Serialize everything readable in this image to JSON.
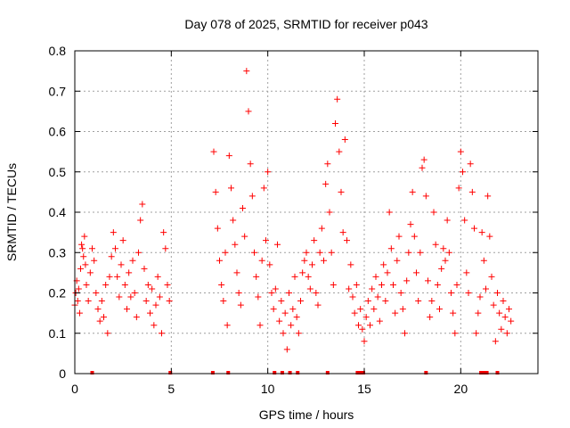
{
  "chart_data": {
    "type": "scatter",
    "title": "Day 078 of 2025, SRMTID for receiver p043",
    "xlabel": "GPS time / hours",
    "ylabel": "SRMTID / TECUs",
    "xlim": [
      0,
      24
    ],
    "ylim": [
      0,
      0.8
    ],
    "xticks": [
      0,
      5,
      10,
      15,
      20
    ],
    "yticks": [
      0,
      0.1,
      0.2,
      0.3,
      0.4,
      0.5,
      0.6,
      0.7,
      0.8
    ],
    "ytick_labels": [
      "0",
      "0.1",
      "0.2",
      "0.3",
      "0.4",
      "0.5",
      "0.6",
      "0.7",
      "0.8"
    ],
    "grid": true,
    "marker": "+",
    "color": "#ff0000",
    "zero_markers_x": [
      0.9,
      4.95,
      7.15,
      7.95,
      10.35,
      10.75,
      11.15,
      11.55,
      13.1,
      14.65,
      14.8,
      14.95,
      18.2,
      21.05,
      21.2,
      21.35,
      21.9
    ],
    "series": [
      {
        "name": "SRMTID",
        "points": [
          [
            0.0,
            0.17
          ],
          [
            0.05,
            0.2
          ],
          [
            0.1,
            0.23
          ],
          [
            0.15,
            0.18
          ],
          [
            0.2,
            0.21
          ],
          [
            0.25,
            0.15
          ],
          [
            0.3,
            0.26
          ],
          [
            0.35,
            0.32
          ],
          [
            0.4,
            0.31
          ],
          [
            0.45,
            0.29
          ],
          [
            0.5,
            0.34
          ],
          [
            0.55,
            0.27
          ],
          [
            0.6,
            0.22
          ],
          [
            0.7,
            0.18
          ],
          [
            0.8,
            0.25
          ],
          [
            0.9,
            0.31
          ],
          [
            1.0,
            0.28
          ],
          [
            1.1,
            0.2
          ],
          [
            1.2,
            0.16
          ],
          [
            1.3,
            0.13
          ],
          [
            1.4,
            0.18
          ],
          [
            1.5,
            0.14
          ],
          [
            1.6,
            0.22
          ],
          [
            1.7,
            0.1
          ],
          [
            1.8,
            0.24
          ],
          [
            1.9,
            0.29
          ],
          [
            2.0,
            0.35
          ],
          [
            2.1,
            0.31
          ],
          [
            2.2,
            0.24
          ],
          [
            2.3,
            0.19
          ],
          [
            2.4,
            0.27
          ],
          [
            2.5,
            0.33
          ],
          [
            2.6,
            0.22
          ],
          [
            2.7,
            0.16
          ],
          [
            2.8,
            0.25
          ],
          [
            2.9,
            0.19
          ],
          [
            3.0,
            0.28
          ],
          [
            3.1,
            0.2
          ],
          [
            3.2,
            0.14
          ],
          [
            3.3,
            0.3
          ],
          [
            3.4,
            0.38
          ],
          [
            3.5,
            0.42
          ],
          [
            3.6,
            0.26
          ],
          [
            3.7,
            0.18
          ],
          [
            3.8,
            0.22
          ],
          [
            3.9,
            0.15
          ],
          [
            4.0,
            0.21
          ],
          [
            4.1,
            0.12
          ],
          [
            4.2,
            0.17
          ],
          [
            4.3,
            0.24
          ],
          [
            4.4,
            0.19
          ],
          [
            4.5,
            0.1
          ],
          [
            4.6,
            0.35
          ],
          [
            4.7,
            0.31
          ],
          [
            4.8,
            0.22
          ],
          [
            4.9,
            0.18
          ],
          [
            7.2,
            0.55
          ],
          [
            7.3,
            0.45
          ],
          [
            7.4,
            0.36
          ],
          [
            7.5,
            0.28
          ],
          [
            7.6,
            0.22
          ],
          [
            7.7,
            0.18
          ],
          [
            7.8,
            0.3
          ],
          [
            7.9,
            0.12
          ],
          [
            8.0,
            0.54
          ],
          [
            8.1,
            0.46
          ],
          [
            8.2,
            0.38
          ],
          [
            8.3,
            0.32
          ],
          [
            8.4,
            0.25
          ],
          [
            8.5,
            0.2
          ],
          [
            8.6,
            0.17
          ],
          [
            8.7,
            0.41
          ],
          [
            8.8,
            0.34
          ],
          [
            8.9,
            0.75
          ],
          [
            9.0,
            0.65
          ],
          [
            9.1,
            0.52
          ],
          [
            9.2,
            0.44
          ],
          [
            9.3,
            0.3
          ],
          [
            9.4,
            0.24
          ],
          [
            9.5,
            0.19
          ],
          [
            9.6,
            0.12
          ],
          [
            9.7,
            0.28
          ],
          [
            9.8,
            0.46
          ],
          [
            9.9,
            0.33
          ],
          [
            10.0,
            0.5
          ],
          [
            10.1,
            0.27
          ],
          [
            10.2,
            0.2
          ],
          [
            10.3,
            0.16
          ],
          [
            10.4,
            0.21
          ],
          [
            10.5,
            0.32
          ],
          [
            10.6,
            0.13
          ],
          [
            10.7,
            0.18
          ],
          [
            10.8,
            0.1
          ],
          [
            10.9,
            0.15
          ],
          [
            11.0,
            0.06
          ],
          [
            11.1,
            0.2
          ],
          [
            11.2,
            0.12
          ],
          [
            11.3,
            0.16
          ],
          [
            11.4,
            0.24
          ],
          [
            11.5,
            0.14
          ],
          [
            11.6,
            0.1
          ],
          [
            11.7,
            0.18
          ],
          [
            11.8,
            0.25
          ],
          [
            11.9,
            0.28
          ],
          [
            12.0,
            0.3
          ],
          [
            12.1,
            0.24
          ],
          [
            12.2,
            0.21
          ],
          [
            12.3,
            0.27
          ],
          [
            12.4,
            0.33
          ],
          [
            12.5,
            0.2
          ],
          [
            12.6,
            0.17
          ],
          [
            12.7,
            0.3
          ],
          [
            12.8,
            0.36
          ],
          [
            12.9,
            0.28
          ],
          [
            13.0,
            0.47
          ],
          [
            13.1,
            0.52
          ],
          [
            13.2,
            0.4
          ],
          [
            13.3,
            0.3
          ],
          [
            13.4,
            0.22
          ],
          [
            13.5,
            0.62
          ],
          [
            13.6,
            0.68
          ],
          [
            13.7,
            0.55
          ],
          [
            13.8,
            0.45
          ],
          [
            13.9,
            0.35
          ],
          [
            14.0,
            0.58
          ],
          [
            14.1,
            0.33
          ],
          [
            14.2,
            0.21
          ],
          [
            14.3,
            0.27
          ],
          [
            14.4,
            0.19
          ],
          [
            14.5,
            0.15
          ],
          [
            14.6,
            0.22
          ],
          [
            14.7,
            0.12
          ],
          [
            14.8,
            0.16
          ],
          [
            14.9,
            0.11
          ],
          [
            15.0,
            0.08
          ],
          [
            15.1,
            0.14
          ],
          [
            15.2,
            0.18
          ],
          [
            15.3,
            0.12
          ],
          [
            15.4,
            0.21
          ],
          [
            15.5,
            0.16
          ],
          [
            15.6,
            0.24
          ],
          [
            15.7,
            0.19
          ],
          [
            15.8,
            0.13
          ],
          [
            15.9,
            0.22
          ],
          [
            16.0,
            0.27
          ],
          [
            16.1,
            0.18
          ],
          [
            16.2,
            0.25
          ],
          [
            16.3,
            0.4
          ],
          [
            16.4,
            0.31
          ],
          [
            16.5,
            0.22
          ],
          [
            16.6,
            0.15
          ],
          [
            16.7,
            0.28
          ],
          [
            16.8,
            0.34
          ],
          [
            16.9,
            0.2
          ],
          [
            17.0,
            0.16
          ],
          [
            17.1,
            0.1
          ],
          [
            17.2,
            0.23
          ],
          [
            17.3,
            0.3
          ],
          [
            17.4,
            0.37
          ],
          [
            17.5,
            0.45
          ],
          [
            17.6,
            0.34
          ],
          [
            17.7,
            0.25
          ],
          [
            17.8,
            0.18
          ],
          [
            17.9,
            0.3
          ],
          [
            18.0,
            0.51
          ],
          [
            18.1,
            0.53
          ],
          [
            18.2,
            0.44
          ],
          [
            18.3,
            0.23
          ],
          [
            18.4,
            0.14
          ],
          [
            18.5,
            0.18
          ],
          [
            18.6,
            0.4
          ],
          [
            18.7,
            0.32
          ],
          [
            18.8,
            0.22
          ],
          [
            18.9,
            0.16
          ],
          [
            19.0,
            0.26
          ],
          [
            19.1,
            0.31
          ],
          [
            19.2,
            0.28
          ],
          [
            19.3,
            0.38
          ],
          [
            19.4,
            0.3
          ],
          [
            19.5,
            0.2
          ],
          [
            19.6,
            0.15
          ],
          [
            19.7,
            0.1
          ],
          [
            19.8,
            0.22
          ],
          [
            19.9,
            0.46
          ],
          [
            20.0,
            0.55
          ],
          [
            20.1,
            0.5
          ],
          [
            20.2,
            0.38
          ],
          [
            20.3,
            0.25
          ],
          [
            20.4,
            0.2
          ],
          [
            20.5,
            0.52
          ],
          [
            20.6,
            0.45
          ],
          [
            20.7,
            0.36
          ],
          [
            20.8,
            0.1
          ],
          [
            20.9,
            0.15
          ],
          [
            21.0,
            0.19
          ],
          [
            21.1,
            0.35
          ],
          [
            21.2,
            0.28
          ],
          [
            21.3,
            0.21
          ],
          [
            21.4,
            0.44
          ],
          [
            21.5,
            0.34
          ],
          [
            21.6,
            0.24
          ],
          [
            21.7,
            0.17
          ],
          [
            21.8,
            0.08
          ],
          [
            21.9,
            0.2
          ],
          [
            22.0,
            0.15
          ],
          [
            22.1,
            0.11
          ],
          [
            22.2,
            0.18
          ],
          [
            22.3,
            0.14
          ],
          [
            22.4,
            0.1
          ],
          [
            22.5,
            0.16
          ],
          [
            22.6,
            0.13
          ]
        ]
      }
    ]
  }
}
